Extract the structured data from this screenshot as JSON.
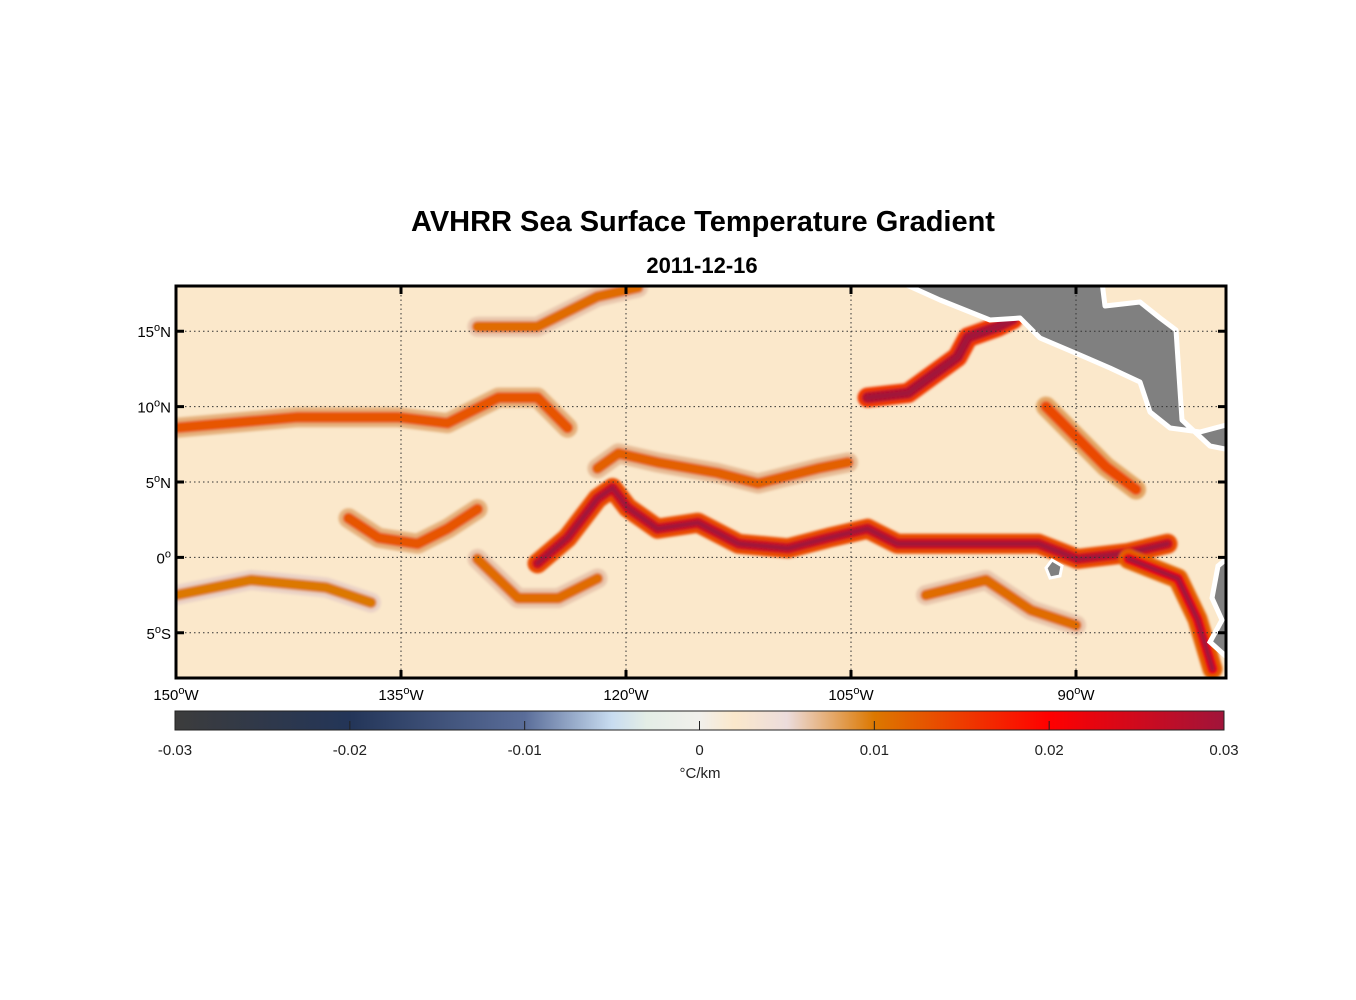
{
  "chart_data": {
    "type": "heatmap",
    "title": "AVHRR Sea Surface Temperature Gradient",
    "subtitle": "2011-12-16",
    "lon_range": [
      -150,
      -80
    ],
    "lat_range": [
      -8,
      18
    ],
    "grid": true,
    "x_ticks": [
      {
        "value": -150,
        "deg": "150",
        "hemi": "W"
      },
      {
        "value": -135,
        "deg": "135",
        "hemi": "W"
      },
      {
        "value": -120,
        "deg": "120",
        "hemi": "W"
      },
      {
        "value": -105,
        "deg": "105",
        "hemi": "W"
      },
      {
        "value": -90,
        "deg": "90",
        "hemi": "W"
      }
    ],
    "y_ticks": [
      {
        "value": 15,
        "deg": "15",
        "hemi": "N"
      },
      {
        "value": 10,
        "deg": "10",
        "hemi": "N"
      },
      {
        "value": 5,
        "deg": "5",
        "hemi": "N"
      },
      {
        "value": 0,
        "deg": "0",
        "hemi": ""
      },
      {
        "value": -5,
        "deg": "5",
        "hemi": "S"
      }
    ],
    "colorbar": {
      "label": "°C/km",
      "range": [
        -0.03,
        0.03
      ],
      "ticks": [
        "-0.03",
        "-0.02",
        "-0.01",
        "0",
        "0.01",
        "0.02",
        "0.03"
      ],
      "tick_values": [
        -0.03,
        -0.02,
        -0.01,
        0,
        0.01,
        0.02,
        0.03
      ],
      "colors": [
        {
          "v": -0.03,
          "c": "#3c3c3c"
        },
        {
          "v": -0.02,
          "c": "#233558"
        },
        {
          "v": -0.01,
          "c": "#5a6d99"
        },
        {
          "v": -0.005,
          "c": "#c8dcf0"
        },
        {
          "v": -0.003,
          "c": "#e4eee6"
        },
        {
          "v": 0,
          "c": "#f1f0ec"
        },
        {
          "v": 0.002,
          "c": "#fbe8cb"
        },
        {
          "v": 0.005,
          "c": "#ecdcdc"
        },
        {
          "v": 0.01,
          "c": "#dc7800"
        },
        {
          "v": 0.02,
          "c": "#ff0000"
        },
        {
          "v": 0.03,
          "c": "#a0143a"
        }
      ]
    },
    "background_value": 0.002,
    "land_color": "#808080",
    "fronts": [
      {
        "name": "equatorial-front",
        "value": 0.025,
        "points": [
          [
            -125.9,
            -0.4
          ],
          [
            -123.9,
            1.3
          ],
          [
            -121.9,
            3.9
          ],
          [
            -120.9,
            4.6
          ],
          [
            -119.9,
            3.3
          ],
          [
            -117.9,
            1.9
          ],
          [
            -115.2,
            2.3
          ],
          [
            -112.5,
            0.9
          ],
          [
            -109.2,
            0.6
          ],
          [
            -106.5,
            1.3
          ],
          [
            -103.9,
            1.9
          ],
          [
            -101.9,
            0.9
          ],
          [
            -98.5,
            0.9
          ],
          [
            -95.2,
            0.9
          ],
          [
            -92.5,
            0.9
          ],
          [
            -89.9,
            -0.1
          ],
          [
            -86.5,
            0.3
          ],
          [
            -83.9,
            0.9
          ]
        ]
      },
      {
        "name": "north-equatorial-front",
        "value": 0.012,
        "points": [
          [
            -121.9,
            5.9
          ],
          [
            -120.5,
            6.9
          ],
          [
            -117.9,
            6.3
          ],
          [
            -113.9,
            5.6
          ],
          [
            -111.2,
            4.9
          ],
          [
            -107.2,
            5.9
          ],
          [
            -105.2,
            6.3
          ]
        ]
      },
      {
        "name": "ten-north-front",
        "value": 0.013,
        "points": [
          [
            -149.9,
            8.6
          ],
          [
            -141.9,
            9.3
          ],
          [
            -135.2,
            9.3
          ],
          [
            -131.9,
            8.9
          ],
          [
            -128.5,
            10.6
          ],
          [
            -125.9,
            10.6
          ],
          [
            -123.9,
            8.6
          ]
        ]
      },
      {
        "name": "western-arc-front",
        "value": 0.013,
        "points": [
          [
            -138.5,
            2.6
          ],
          [
            -136.5,
            1.3
          ],
          [
            -133.9,
            0.9
          ],
          [
            -131.9,
            1.9
          ],
          [
            -129.9,
            3.2
          ]
        ]
      },
      {
        "name": "southern-front",
        "value": 0.011,
        "points": [
          [
            -129.9,
            -0.1
          ],
          [
            -127.2,
            -2.7
          ],
          [
            -124.5,
            -2.7
          ],
          [
            -121.9,
            -1.4
          ]
        ]
      },
      {
        "name": "central-american-front",
        "value": 0.028,
        "points": [
          [
            -103.9,
            10.6
          ],
          [
            -101.2,
            10.9
          ],
          [
            -97.9,
            13.3
          ],
          [
            -97.2,
            14.6
          ],
          [
            -95.2,
            15.3
          ],
          [
            -94.2,
            15.8
          ]
        ]
      },
      {
        "name": "peru-coastal-front",
        "value": 0.022,
        "points": [
          [
            -86.5,
            -0.1
          ],
          [
            -83.2,
            -1.4
          ],
          [
            -81.9,
            -4.1
          ],
          [
            -80.9,
            -7.4
          ]
        ]
      },
      {
        "name": "northern-front",
        "value": 0.011,
        "points": [
          [
            -129.9,
            15.3
          ],
          [
            -125.9,
            15.3
          ],
          [
            -121.9,
            17.3
          ],
          [
            -119.2,
            17.9
          ]
        ]
      },
      {
        "name": "west-south-front",
        "value": 0.01,
        "points": [
          [
            -150,
            -2.5
          ],
          [
            -145,
            -1.5
          ],
          [
            -140,
            -2.0
          ],
          [
            -137,
            -3.0
          ]
        ]
      },
      {
        "name": "east-south-front",
        "value": 0.011,
        "points": [
          [
            -100,
            -2.5
          ],
          [
            -96,
            -1.5
          ],
          [
            -93,
            -3.5
          ],
          [
            -90,
            -4.5
          ]
        ]
      },
      {
        "name": "east-diagonal-front",
        "value": 0.014,
        "points": [
          [
            -92,
            10
          ],
          [
            -90,
            8
          ],
          [
            -88,
            6
          ],
          [
            -86,
            4.5
          ]
        ]
      }
    ]
  }
}
